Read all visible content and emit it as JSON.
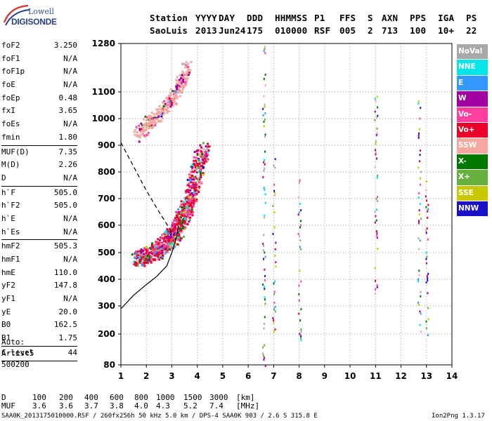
{
  "logo": {
    "line1": "Lowell",
    "line2": "DIGISONDE"
  },
  "header": {
    "row1": [
      "Station",
      "YYYY",
      "DAY",
      "DDD",
      "HHMMSS",
      "P1",
      "FFS",
      "S",
      "AXN",
      "PPS",
      "IGA",
      "PS"
    ],
    "row2": [
      "SaoLuis",
      "2013",
      "Jun24",
      "175",
      "010000",
      "RSF",
      "005",
      "2",
      "713",
      "100",
      "10+",
      "22"
    ]
  },
  "params": [
    {
      "label": "foF2",
      "value": "3.250"
    },
    {
      "label": "foF1",
      "value": "N/A"
    },
    {
      "label": "foF1p",
      "value": "N/A"
    },
    {
      "label": "foE",
      "value": "N/A"
    },
    {
      "label": "foEp",
      "value": "0.48"
    },
    {
      "label": "fxI",
      "value": "3.65"
    },
    {
      "label": "foEs",
      "value": "N/A"
    },
    {
      "label": "fmin",
      "value": "1.80",
      "sep": true
    },
    {
      "label": "MUF(D)",
      "value": "7.35"
    },
    {
      "label": "M(D)",
      "value": "2.26"
    },
    {
      "label": "D",
      "value": "N/A",
      "sep": true
    },
    {
      "label": "h`F",
      "value": "505.0"
    },
    {
      "label": "h`F2",
      "value": "505.0"
    },
    {
      "label": "h`E",
      "value": "N/A"
    },
    {
      "label": "h`Es",
      "value": "N/A",
      "sep": true
    },
    {
      "label": "hmF2",
      "value": "505.3"
    },
    {
      "label": "hmF1",
      "value": "N/A"
    },
    {
      "label": "hmE",
      "value": "110.0"
    },
    {
      "label": "yF2",
      "value": "147.8"
    },
    {
      "label": "yF1",
      "value": "N/A"
    },
    {
      "label": "yE",
      "value": "20.0"
    },
    {
      "label": "B0",
      "value": "162.5"
    },
    {
      "label": "B1",
      "value": "1.75",
      "sep": true
    },
    {
      "label": "C-level",
      "value": "44",
      "sep": true
    }
  ],
  "auto": {
    "line1": "Auto:",
    "line2": "Artist5",
    "line3": "500200"
  },
  "legend": [
    {
      "label": "NoVal",
      "color": "#a8a8a8"
    },
    {
      "label": "NNE",
      "color": "#00e6e6"
    },
    {
      "label": "E",
      "color": "#3399ff"
    },
    {
      "label": "W",
      "color": "#a000a0"
    },
    {
      "label": "Vo-",
      "color": "#ff40a0"
    },
    {
      "label": "Vo+",
      "color": "#e8002a"
    },
    {
      "label": "SSW",
      "color": "#f4a8a0"
    },
    {
      "label": "X-",
      "color": "#007800"
    },
    {
      "label": "X+",
      "color": "#66b040"
    },
    {
      "label": "SSE",
      "color": "#c8c800"
    },
    {
      "label": "NNW",
      "color": "#1a10c8"
    }
  ],
  "muf_table": {
    "d_label": "D",
    "d_values": [
      "100",
      "200",
      "400",
      "600",
      "800",
      "1000",
      "1500",
      "3000"
    ],
    "d_unit": "[km]",
    "m_label": "MUF",
    "m_values": [
      "3.6",
      "3.6",
      "3.7",
      "3.8",
      "4.0",
      "4.3",
      "5.2",
      "7.4"
    ],
    "m_unit": "[MHz]"
  },
  "footer": {
    "left": "SAA0K_2013175010000.RSF / 260fx256h 50 kHz 5.0 km / DPS-4 SAA0K 903 / 2.6 S 315.8 E",
    "right": "Ion2Png 1.3.17"
  },
  "chart_data": {
    "type": "scatter",
    "title": "",
    "xlabel": "",
    "ylabel": "",
    "xlim": [
      1,
      14
    ],
    "ylim": [
      80,
      1280
    ],
    "x_ticks": [
      1,
      2,
      3,
      4,
      5,
      6,
      7,
      8,
      9,
      10,
      11,
      12,
      13,
      14
    ],
    "y_ticks": [
      80,
      200,
      300,
      400,
      500,
      600,
      700,
      800,
      900,
      1000,
      1100,
      1280
    ],
    "grid": "dotted",
    "legend_position": "right",
    "scale": "log-like height axis",
    "ordinary_trace": {
      "x": [
        1.6,
        2.0,
        2.4,
        2.8,
        3.0,
        3.2,
        3.4,
        3.6,
        3.8,
        4.0,
        4.2
      ],
      "y": [
        480,
        495,
        510,
        540,
        560,
        590,
        630,
        680,
        740,
        820,
        900
      ]
    },
    "second_hop_trace": {
      "x": [
        1.6,
        2.0,
        2.4,
        2.8,
        3.0,
        3.2,
        3.4,
        3.6
      ],
      "y": [
        940,
        980,
        1010,
        1050,
        1080,
        1110,
        1150,
        1200
      ]
    },
    "profile_curve": {
      "x": [
        1.0,
        1.5,
        2.0,
        2.4,
        2.8,
        3.0,
        3.2,
        3.25
      ],
      "y": [
        290,
        340,
        380,
        410,
        450,
        500,
        560,
        600
      ]
    },
    "dashed_curve": {
      "x": [
        1.0,
        1.5,
        2.0,
        2.5,
        2.9,
        3.1
      ],
      "y": [
        910,
        820,
        730,
        650,
        590,
        560
      ]
    },
    "vertical_streaks": [
      {
        "x": 6.6,
        "y0": 80,
        "y1": 1280
      },
      {
        "x": 7.0,
        "y0": 180,
        "y1": 900
      },
      {
        "x": 8.0,
        "y0": 180,
        "y1": 800
      },
      {
        "x": 12.7,
        "y0": 180,
        "y1": 1100
      },
      {
        "x": 13.0,
        "y0": 200,
        "y1": 800
      },
      {
        "x": 11.0,
        "y0": 350,
        "y1": 1100
      }
    ]
  }
}
